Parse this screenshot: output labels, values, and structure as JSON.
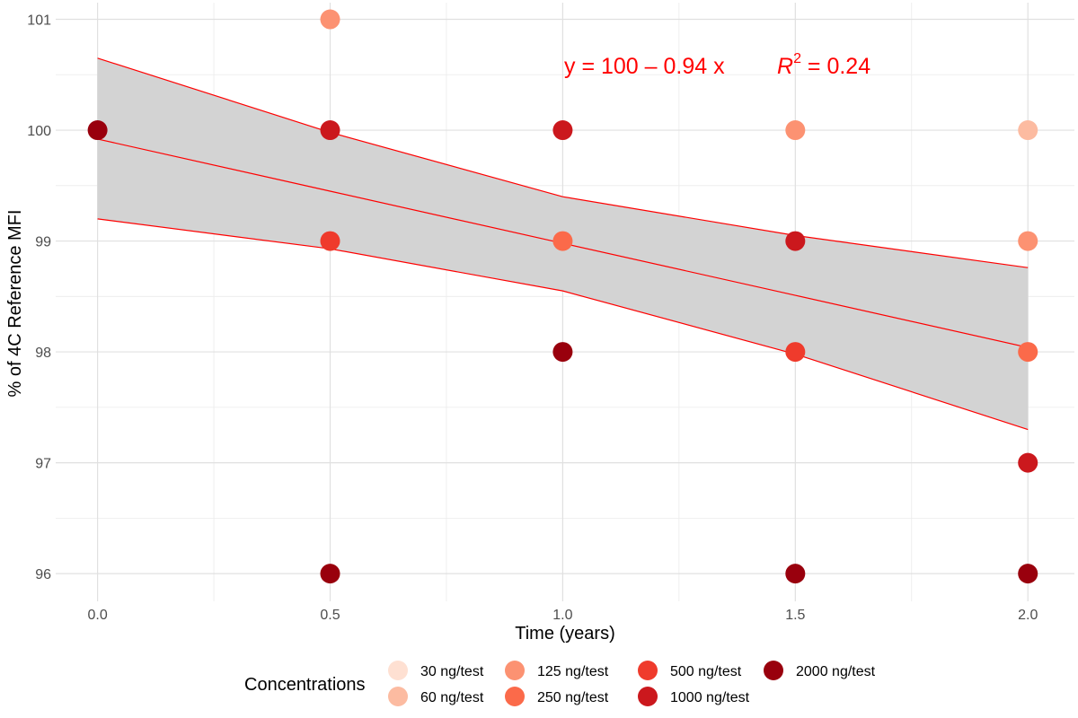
{
  "chart_data": {
    "type": "scatter",
    "xlabel": "Time (years)",
    "ylabel": "% of 4C Reference MFI",
    "xlim": [
      -0.09,
      2.1
    ],
    "ylim": [
      95.75,
      101.15
    ],
    "x_ticks": [
      0.0,
      0.5,
      1.0,
      1.5,
      2.0
    ],
    "x_tick_labels": [
      "0.0",
      "0.5",
      "1.0",
      "1.5",
      "2.0"
    ],
    "x_minor_ticks": [
      0.25,
      0.75,
      1.25,
      1.75
    ],
    "y_ticks": [
      96,
      97,
      98,
      99,
      100,
      101
    ],
    "y_tick_labels": [
      "96",
      "97",
      "98",
      "99",
      "100",
      "101"
    ],
    "y_minor_ticks": [
      96.5,
      97.5,
      98.5,
      99.5,
      100.5
    ],
    "grid": true,
    "legend_title": "Concentrations",
    "legend_position": "bottom",
    "series": [
      {
        "name": "30 ng/test",
        "color": "#fee0d2",
        "points": []
      },
      {
        "name": "60 ng/test",
        "color": "#fcbba1",
        "points": [
          [
            2.0,
            100
          ]
        ]
      },
      {
        "name": "125 ng/test",
        "color": "#fc9272",
        "points": [
          [
            0.5,
            101
          ],
          [
            1.5,
            100
          ],
          [
            2.0,
            99
          ]
        ]
      },
      {
        "name": "250 ng/test",
        "color": "#fb6a4a",
        "points": [
          [
            1.0,
            99
          ],
          [
            2.0,
            98
          ]
        ]
      },
      {
        "name": "500 ng/test",
        "color": "#ef3b2c",
        "points": [
          [
            0.5,
            99
          ],
          [
            1.5,
            98
          ]
        ]
      },
      {
        "name": "1000 ng/test",
        "color": "#cb181d",
        "points": [
          [
            0.5,
            100
          ],
          [
            1.0,
            100
          ],
          [
            1.5,
            99
          ],
          [
            2.0,
            97
          ]
        ]
      },
      {
        "name": "2000 ng/test",
        "color": "#99000d",
        "points": [
          [
            0.0,
            100
          ],
          [
            0.5,
            96
          ],
          [
            1.0,
            98
          ],
          [
            1.5,
            96
          ],
          [
            2.0,
            96
          ]
        ]
      }
    ],
    "regression": {
      "color": "#ff0000",
      "fit": [
        [
          0.0,
          99.92
        ],
        [
          0.5,
          99.45
        ],
        [
          1.0,
          98.98
        ],
        [
          1.5,
          98.51
        ],
        [
          2.0,
          98.04
        ]
      ],
      "band_upper": [
        [
          0.0,
          100.65
        ],
        [
          0.5,
          99.98
        ],
        [
          1.0,
          99.4
        ],
        [
          1.5,
          99.05
        ],
        [
          2.0,
          98.76
        ]
      ],
      "band_lower": [
        [
          0.0,
          99.2
        ],
        [
          0.5,
          98.93
        ],
        [
          1.0,
          98.55
        ],
        [
          1.5,
          97.98
        ],
        [
          2.0,
          97.3
        ]
      ],
      "band_color": "#d3d3d3"
    },
    "annotations": {
      "equation": "y = 100 – 0.94 x",
      "r2_base": "R",
      "r2_exp": "2",
      "r2_rest": " = 0.24"
    }
  }
}
